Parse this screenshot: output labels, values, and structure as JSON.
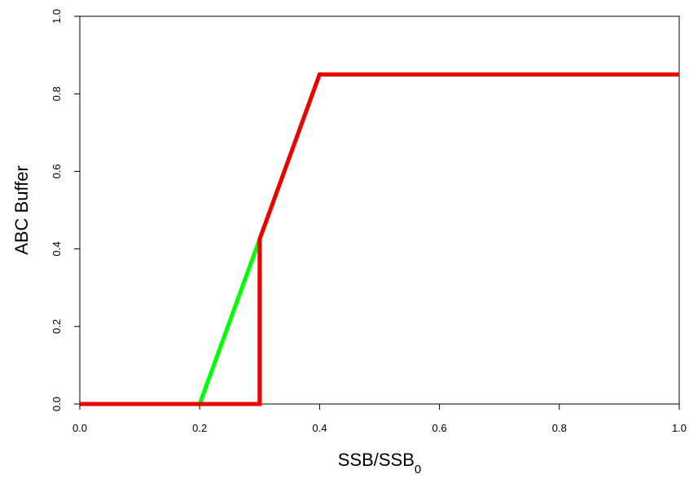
{
  "chart_data": {
    "type": "line",
    "xlabel": "SSB/SSB",
    "xlabel_subscript": "0",
    "ylabel": "ABC Buffer",
    "xlim": [
      0.0,
      1.0
    ],
    "ylim": [
      0.0,
      1.0
    ],
    "x_ticks": [
      "0.0",
      "0.2",
      "0.4",
      "0.6",
      "0.8",
      "1.0"
    ],
    "y_ticks": [
      "0.0",
      "0.2",
      "0.4",
      "0.6",
      "0.8",
      "1.0"
    ],
    "grid": false,
    "series": [
      {
        "color": "#00ff00",
        "x": [
          0.0,
          0.2,
          0.3,
          0.4,
          1.0
        ],
        "y": [
          0.0,
          0.0,
          0.425,
          0.85,
          0.85
        ]
      },
      {
        "color": "#ee0000",
        "x": [
          0.0,
          0.3,
          0.3,
          0.4,
          1.0
        ],
        "y": [
          0.0,
          0.0,
          0.425,
          0.85,
          0.85
        ]
      }
    ]
  }
}
